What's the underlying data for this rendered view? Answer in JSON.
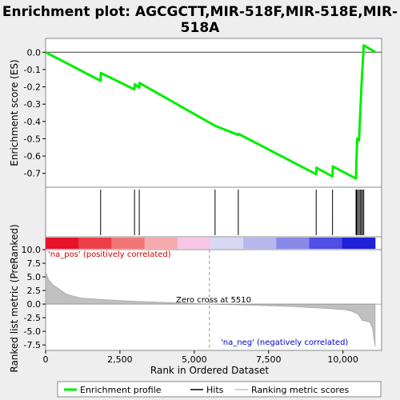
{
  "chart_data": {
    "type": "line",
    "title_line1": "Enrichment plot: AGCGCTT,MIR-518F,MIR-518E,MIR-",
    "title_line2": "518A",
    "top_panel": {
      "ylabel": "Enrichment score (ES)",
      "ylim": [
        -0.78,
        0.08
      ],
      "yticks": [
        0.0,
        -0.1,
        -0.2,
        -0.3,
        -0.4,
        -0.5,
        -0.6,
        -0.7
      ],
      "ytick_labels": [
        "0.0",
        "-0.1",
        "-0.2",
        "-0.3",
        "-0.4",
        "-0.5",
        "-0.6",
        "-0.7"
      ],
      "series": [
        {
          "name": "Enrichment profile",
          "color": "#00ee00",
          "points": [
            [
              0,
              0.0
            ],
            [
              1850,
              -0.165
            ],
            [
              1860,
              -0.12
            ],
            [
              2990,
              -0.215
            ],
            [
              3000,
              -0.185
            ],
            [
              3150,
              -0.205
            ],
            [
              3160,
              -0.178
            ],
            [
              5700,
              -0.425
            ],
            [
              6480,
              -0.478
            ],
            [
              6490,
              -0.472
            ],
            [
              9100,
              -0.705
            ],
            [
              9110,
              -0.668
            ],
            [
              9650,
              -0.718
            ],
            [
              9660,
              -0.66
            ],
            [
              10440,
              -0.73
            ],
            [
              10455,
              -0.62
            ],
            [
              10480,
              -0.5
            ],
            [
              10540,
              -0.51
            ],
            [
              10580,
              -0.36
            ],
            [
              10630,
              -0.17
            ],
            [
              10700,
              0.04
            ],
            [
              11100,
              0.0
            ]
          ]
        }
      ]
    },
    "hits": [
      1850,
      2990,
      3150,
      5700,
      6480,
      9100,
      9650,
      10440,
      10460,
      10490,
      10540,
      10580,
      10620,
      10660,
      10700
    ],
    "heatmap_colors": [
      "#e8112a",
      "#ee3f48",
      "#f27676",
      "#f6aaac",
      "#f8c6e6",
      "#d8d8f4",
      "#b8b8ee",
      "#8888e8",
      "#4f4fe4",
      "#2020d8"
    ],
    "bottom_panel": {
      "ylabel": "Ranked list metric (PreRanked)",
      "ylim": [
        -8.5,
        10.0
      ],
      "yticks": [
        10.0,
        7.5,
        5.0,
        2.5,
        0.0,
        -2.5,
        -5.0,
        -7.5
      ],
      "ytick_labels": [
        "10.0",
        "7.5",
        "5.0",
        "2.5",
        "0.0",
        "-2.5",
        "-5.0",
        "-7.5"
      ],
      "metric_profile": [
        [
          0,
          6.0
        ],
        [
          100,
          4.5
        ],
        [
          250,
          3.5
        ],
        [
          450,
          2.8
        ],
        [
          700,
          1.8
        ],
        [
          1200,
          1.1
        ],
        [
          2000,
          0.8
        ],
        [
          3000,
          0.5
        ],
        [
          4000,
          0.3
        ],
        [
          5000,
          0.1
        ],
        [
          5510,
          0.0
        ],
        [
          6500,
          -0.15
        ],
        [
          7500,
          -0.3
        ],
        [
          8500,
          -0.5
        ],
        [
          9500,
          -0.8
        ],
        [
          10000,
          -1.0
        ],
        [
          10300,
          -1.3
        ],
        [
          10500,
          -1.8
        ],
        [
          10650,
          -3.0
        ],
        [
          10900,
          -3.3
        ],
        [
          11000,
          -4.5
        ],
        [
          11080,
          -7.8
        ]
      ],
      "zero_cross_label": "Zero cross at 5510",
      "zero_cross_x": 5510,
      "pos_label": "'na_pos' (positively correlated)",
      "neg_label": "'na_neg' (negatively correlated)"
    },
    "xlabel": "Rank in Ordered Dataset",
    "xlim": [
      0,
      11300
    ],
    "xticks": [
      0,
      2500,
      5000,
      7500,
      10000
    ],
    "xtick_labels": [
      "0",
      "2,500",
      "5,000",
      "7,500",
      "10,000"
    ],
    "legend": {
      "placement": "bottom",
      "entries": [
        {
          "label": "Enrichment profile",
          "color": "#00ee00"
        },
        {
          "label": "Hits",
          "color": "#000000"
        },
        {
          "label": "Ranking metric scores",
          "color": "#c0c0c0"
        }
      ]
    }
  }
}
